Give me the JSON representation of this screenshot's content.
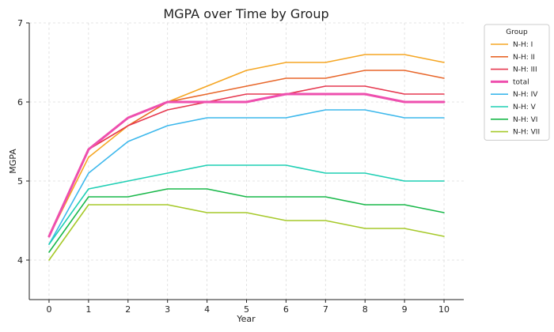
{
  "chart_data": {
    "type": "line",
    "title": "MGPA over Time by Group",
    "xlabel": "Year",
    "ylabel": "MGPA",
    "x": [
      0,
      1,
      2,
      3,
      4,
      5,
      6,
      7,
      8,
      9,
      10
    ],
    "xlim": [
      -0.5,
      10.5
    ],
    "ylim": [
      3.5,
      7.0
    ],
    "yticks": [
      4,
      5,
      6,
      7
    ],
    "grid": true,
    "legend": {
      "title": "Group",
      "placement": "outside-right"
    },
    "series": [
      {
        "name": "N-H: I",
        "color": "#f5a623",
        "values": [
          4.3,
          5.3,
          5.7,
          6.0,
          6.2,
          6.4,
          6.5,
          6.5,
          6.6,
          6.6,
          6.5
        ]
      },
      {
        "name": "N-H: II",
        "color": "#e8672b",
        "values": [
          4.3,
          5.4,
          5.7,
          6.0,
          6.1,
          6.2,
          6.3,
          6.3,
          6.4,
          6.4,
          6.3
        ]
      },
      {
        "name": "N-H: III",
        "color": "#e63950",
        "values": [
          4.3,
          5.4,
          5.7,
          5.9,
          6.0,
          6.1,
          6.1,
          6.2,
          6.2,
          6.1,
          6.1
        ]
      },
      {
        "name": "total",
        "color": "#ee4fae",
        "values": [
          4.3,
          5.4,
          5.8,
          6.0,
          6.0,
          6.0,
          6.1,
          6.1,
          6.1,
          6.0,
          6.0
        ],
        "bold": true
      },
      {
        "name": "N-H: IV",
        "color": "#3db8ec",
        "values": [
          4.2,
          5.1,
          5.5,
          5.7,
          5.8,
          5.8,
          5.8,
          5.9,
          5.9,
          5.8,
          5.8
        ]
      },
      {
        "name": "N-H: V",
        "color": "#1fcfb4",
        "values": [
          4.2,
          4.9,
          5.0,
          5.1,
          5.2,
          5.2,
          5.2,
          5.1,
          5.1,
          5.0,
          5.0
        ]
      },
      {
        "name": "N-H: VI",
        "color": "#19b84a",
        "values": [
          4.1,
          4.8,
          4.8,
          4.9,
          4.9,
          4.8,
          4.8,
          4.8,
          4.7,
          4.7,
          4.6
        ]
      },
      {
        "name": "N-H: VII",
        "color": "#a6c92a",
        "values": [
          4.0,
          4.7,
          4.7,
          4.7,
          4.6,
          4.6,
          4.5,
          4.5,
          4.4,
          4.4,
          4.3
        ]
      }
    ]
  }
}
